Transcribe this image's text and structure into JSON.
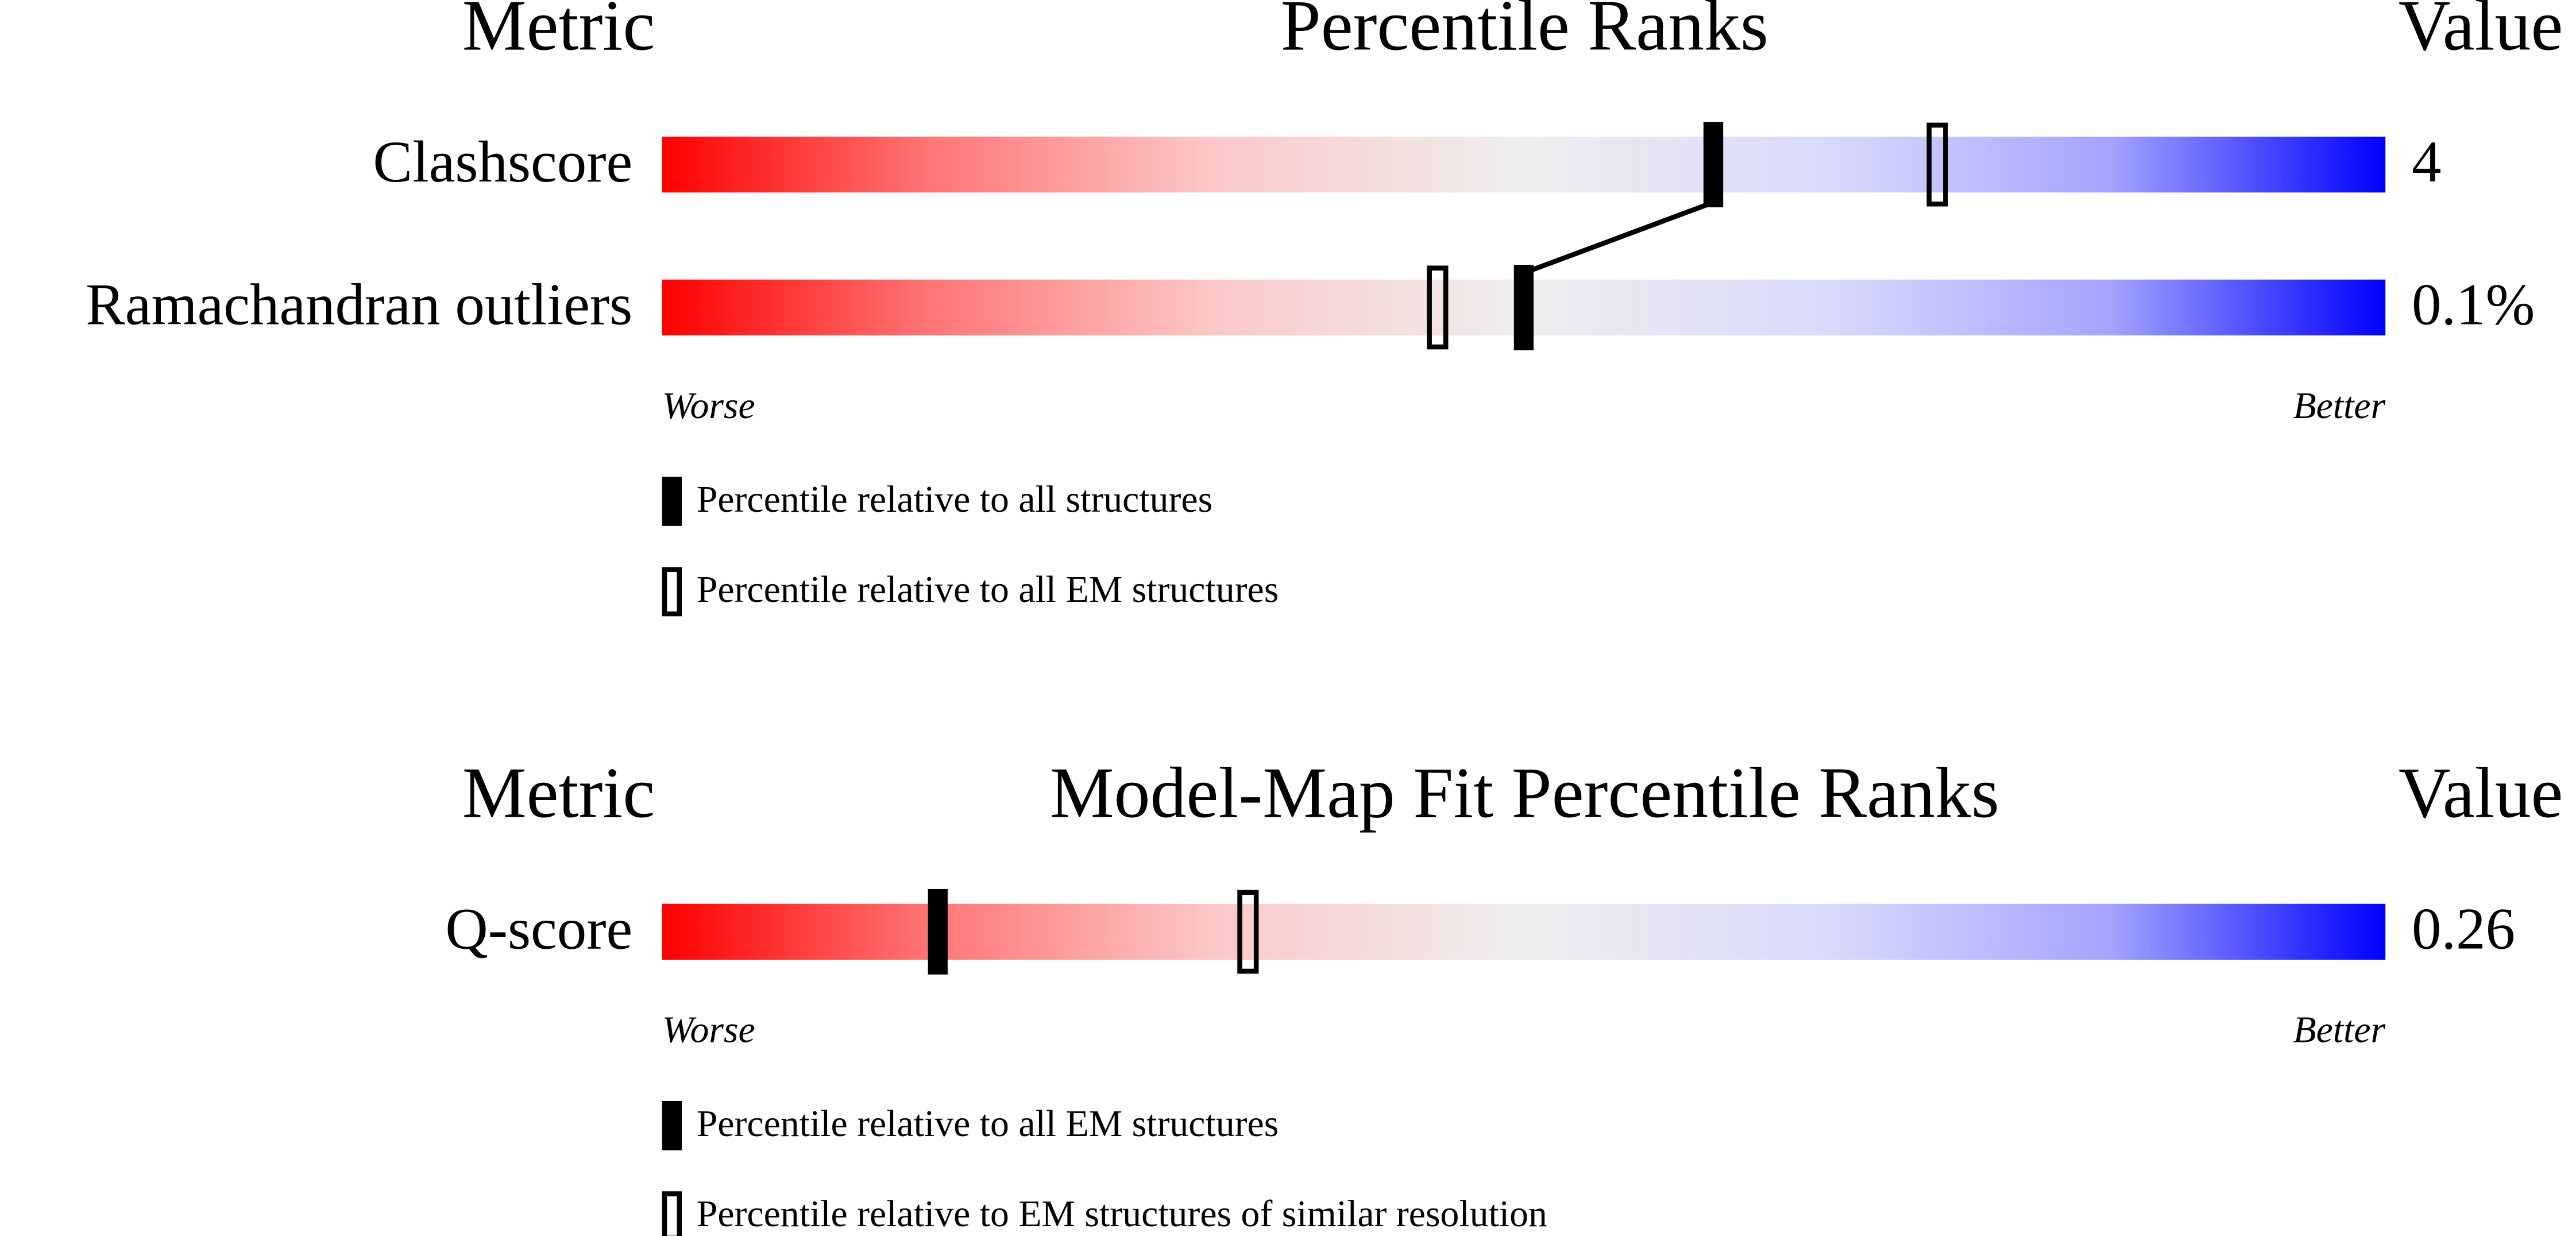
{
  "chart_data": [
    {
      "type": "percentile-slider",
      "metric_header": "Metric",
      "title": "Percentile Ranks",
      "value_header": "Value",
      "categories": [
        "Clashscore",
        "Ramachandran outliers"
      ],
      "value_texts": [
        "4",
        "0.1%"
      ],
      "xlim": [
        0,
        100
      ],
      "worse_label": "Worse",
      "better_label": "Better",
      "series": [
        {
          "name": "Percentile relative to all structures",
          "color": "#000000",
          "style": "filled",
          "values": [
            61,
            50
          ]
        },
        {
          "name": "Percentile relative to all EM structures",
          "color": "#000000",
          "style": "open",
          "values": [
            74,
            45
          ]
        }
      ]
    },
    {
      "type": "percentile-slider",
      "metric_header": "Metric",
      "title": "Model-Map Fit Percentile Ranks",
      "value_header": "Value",
      "categories": [
        "Q-score"
      ],
      "value_texts": [
        "0.26"
      ],
      "xlim": [
        0,
        100
      ],
      "worse_label": "Worse",
      "better_label": "Better",
      "series": [
        {
          "name": "Percentile relative to all EM structures",
          "color": "#000000",
          "style": "filled",
          "values": [
            16
          ]
        },
        {
          "name": "Percentile relative to EM structures of similar resolution",
          "color": "#000000",
          "style": "open",
          "values": [
            34
          ]
        }
      ]
    }
  ]
}
